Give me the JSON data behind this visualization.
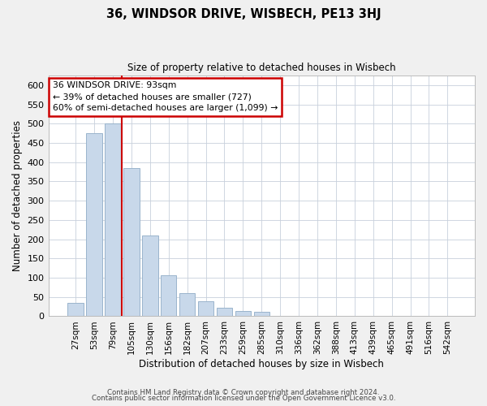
{
  "title": "36, WINDSOR DRIVE, WISBECH, PE13 3HJ",
  "subtitle": "Size of property relative to detached houses in Wisbech",
  "xlabel": "Distribution of detached houses by size in Wisbech",
  "ylabel": "Number of detached properties",
  "bar_labels": [
    "27sqm",
    "53sqm",
    "79sqm",
    "105sqm",
    "130sqm",
    "156sqm",
    "182sqm",
    "207sqm",
    "233sqm",
    "259sqm",
    "285sqm",
    "310sqm",
    "336sqm",
    "362sqm",
    "388sqm",
    "413sqm",
    "439sqm",
    "465sqm",
    "491sqm",
    "516sqm",
    "542sqm"
  ],
  "bar_values": [
    35,
    475,
    500,
    385,
    210,
    107,
    60,
    38,
    22,
    13,
    11,
    0,
    0,
    0,
    0,
    0,
    0,
    0,
    0,
    2,
    2
  ],
  "bar_color": "#c8d8ea",
  "bar_edge_color": "#9ab4cc",
  "vline_color": "#cc0000",
  "annotation_text": "36 WINDSOR DRIVE: 93sqm\n← 39% of detached houses are smaller (727)\n60% of semi-detached houses are larger (1,099) →",
  "annotation_box_color": "#ffffff",
  "annotation_box_edge": "#cc0000",
  "ylim": [
    0,
    625
  ],
  "yticks": [
    0,
    50,
    100,
    150,
    200,
    250,
    300,
    350,
    400,
    450,
    500,
    550,
    600
  ],
  "footer_line1": "Contains HM Land Registry data © Crown copyright and database right 2024.",
  "footer_line2": "Contains public sector information licensed under the Open Government Licence v3.0.",
  "bg_color": "#f0f0f0",
  "plot_bg_color": "#ffffff",
  "grid_color": "#c8d0dc"
}
